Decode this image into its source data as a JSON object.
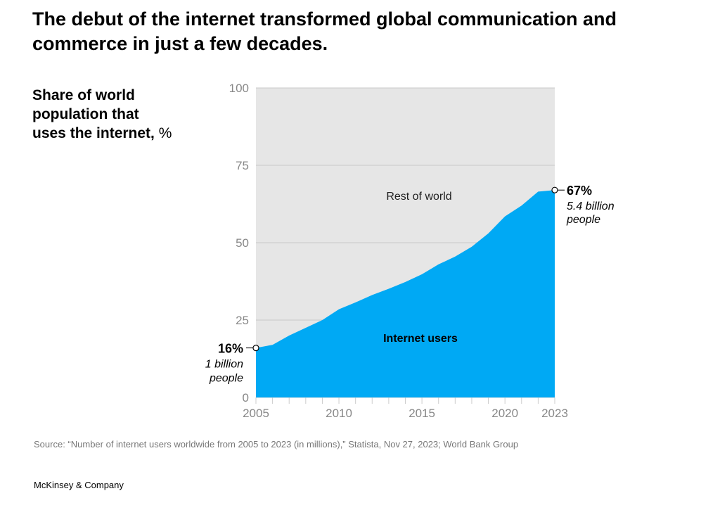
{
  "title": "The debut of the internet transformed global communication and commerce in just a few decades.",
  "source": "Source: “Number of internet users worldwide from 2005 to 2023 (in millions),” Statista, Nov 27, 2023; World Bank Group",
  "brand": "McKinsey & Company",
  "colors": {
    "internet_users": "#00A9F4",
    "rest_of_world": "#E6E6E6"
  },
  "chart_data": {
    "type": "area",
    "title": "The debut of the internet transformed global communication and commerce in just a few decades.",
    "ylabel": "Share of world population that uses the internet,",
    "ylabel_unit": "%",
    "xlabel": "",
    "x": [
      2005,
      2006,
      2007,
      2008,
      2009,
      2010,
      2011,
      2012,
      2013,
      2014,
      2015,
      2016,
      2017,
      2018,
      2019,
      2020,
      2021,
      2022,
      2023
    ],
    "series": [
      {
        "name": "Internet users",
        "values": [
          16,
          17,
          20,
          22.5,
          25,
          28.5,
          30.7,
          33.1,
          35.1,
          37.3,
          39.8,
          43,
          45.5,
          48.7,
          53,
          58.5,
          62,
          66.5,
          67
        ]
      }
    ],
    "background_label": "Rest of world",
    "ylim": [
      0,
      100
    ],
    "yticks": [
      "0",
      "25",
      "50",
      "75",
      "100"
    ],
    "xticks": [
      "2005",
      "2010",
      "2015",
      "2020",
      "2023"
    ],
    "annotations": {
      "start": {
        "value": "16%",
        "line1": "1 billion",
        "line2": "people"
      },
      "end": {
        "value": "67%",
        "line1": "5.4 billion",
        "line2": "people"
      }
    }
  }
}
